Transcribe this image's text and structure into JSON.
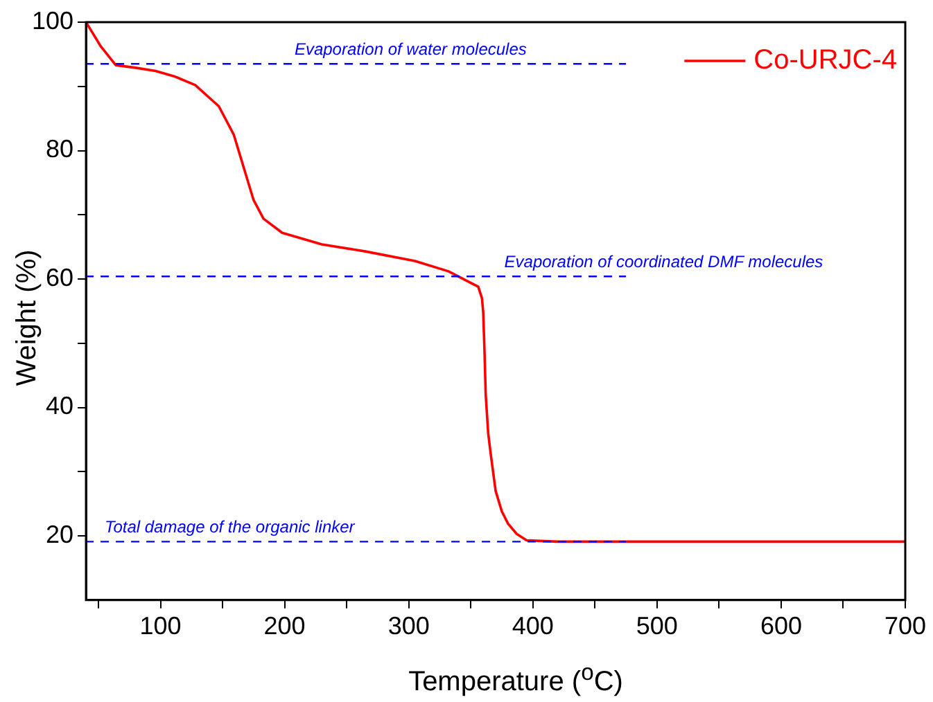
{
  "chart_data": {
    "type": "line",
    "xlabel": "Temperature ($^{o}$C)",
    "ylabel": "Weight (%)",
    "xlim": [
      40,
      700
    ],
    "ylim": [
      10,
      100
    ],
    "xticks": [
      {
        "value": 50,
        "label": null
      },
      100,
      {
        "value": 150,
        "label": null
      },
      200,
      {
        "value": 250,
        "label": null
      },
      300,
      {
        "value": 350,
        "label": null
      },
      400,
      {
        "value": 450,
        "label": null
      },
      500,
      {
        "value": 550,
        "label": null
      },
      600,
      {
        "value": 650,
        "label": null
      },
      700
    ],
    "yticks": [
      20,
      {
        "value": 30,
        "label": null
      },
      40,
      {
        "value": 50,
        "label": null
      },
      60,
      {
        "value": 70,
        "label": null
      },
      80,
      {
        "value": 90,
        "label": null
      },
      100
    ],
    "legend": "top right",
    "grid": false,
    "marker": "none",
    "series": [
      {
        "name": "Co-URJC-4",
        "color": "#ff0000",
        "line_style": "solid",
        "x": [
          40,
          52,
          64,
          80,
          96,
          112,
          128,
          147,
          159,
          167,
          175,
          183,
          198,
          230,
          265,
          305,
          332,
          350,
          356,
          359,
          360,
          361,
          362,
          364,
          366,
          370,
          375,
          380,
          387,
          395,
          420,
          500,
          600,
          700
        ],
        "values": [
          100,
          96.2,
          93.3,
          92.9,
          92.4,
          91.5,
          90.2,
          86.9,
          82.5,
          77.4,
          72.3,
          69.4,
          67.2,
          65.4,
          64.3,
          62.8,
          61.2,
          59.4,
          58.8,
          57,
          54.8,
          49,
          42,
          36,
          32.8,
          27,
          23.8,
          21.9,
          20.3,
          19.3,
          19.1,
          19.1,
          19.1,
          19.1
        ]
      },
      {
        "type": "line",
        "color": "#0000ff",
        "line_style": "dashed",
        "x": [
          40,
          475
        ],
        "values": [
          93.5,
          93.5
        ]
      },
      {
        "type": "line",
        "color": "#0000ff",
        "line_style": "dashed",
        "x": [
          40,
          475
        ],
        "values": [
          60.4,
          60.4
        ]
      },
      {
        "type": "line",
        "color": "#0000ff",
        "line_style": "dashed",
        "x": [
          40,
          475
        ],
        "values": [
          19.1,
          19.1
        ]
      }
    ],
    "annotations": [
      {
        "text": "Evaporation of water molecules",
        "x": 208,
        "y": 93.5
      },
      {
        "text": "Evaporation of coordinated DMF molecules",
        "x": 377,
        "y": 60.4
      },
      {
        "text": "Total damage of the organic linker",
        "x": 55,
        "y": 19.1
      }
    ]
  }
}
